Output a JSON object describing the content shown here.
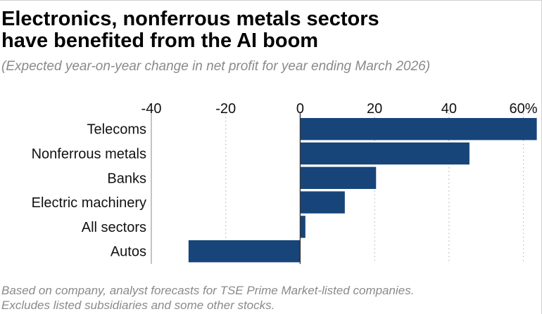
{
  "title_line1": "Electronics, nonferrous metals sectors",
  "title_line2": "have benefited from the AI boom",
  "subtitle": "(Expected year-on-year change in net profit for year ending March 2026)",
  "footnote_line1": "Based on company, analyst forecasts for TSE Prime Market-listed companies.",
  "footnote_line2": "Excludes listed subsidiaries and some other stocks.",
  "colors": {
    "bar": "#17457a",
    "axis": "#333333",
    "grid": "#b8b8b8"
  },
  "chart_data": {
    "type": "bar",
    "orientation": "horizontal",
    "title": "Electronics, nonferrous metals sectors have benefited from the AI boom",
    "subtitle": "(Expected year-on-year change in net profit for year ending March 2026)",
    "categories": [
      "Telecoms",
      "Nonferrous metals",
      "Banks",
      "Electric machinery",
      "All sectors",
      "Autos"
    ],
    "values": [
      63.6,
      45.5,
      20.4,
      12.0,
      1.4,
      -30.0
    ],
    "unit": "%",
    "xlim": [
      -40,
      65
    ],
    "ticks": [
      -40,
      -20,
      0,
      20,
      40,
      60
    ],
    "tick_labels": [
      "-40",
      "-20",
      "0",
      "20",
      "40",
      "60%"
    ],
    "xlabel": "",
    "ylabel": "",
    "grid": true
  }
}
